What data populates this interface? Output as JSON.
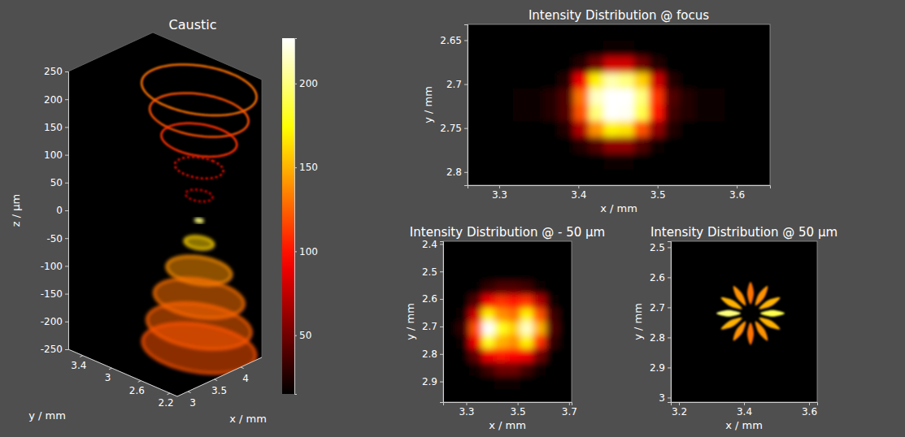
{
  "chart_data": [
    {
      "type": "caustic",
      "title": "Caustic",
      "xlabel": "x / mm",
      "ylabel": "y / mm",
      "zlabel": "z / µm",
      "xlim": [
        2.8,
        4.4
      ],
      "ylim": [
        2.1,
        3.6
      ],
      "zlim": [
        -250,
        250
      ],
      "xticks": [
        3,
        3.5,
        4
      ],
      "yticks": [
        2.2,
        2.6,
        3,
        3.4
      ],
      "zticks": [
        -250,
        -200,
        -150,
        -100,
        -50,
        0,
        50,
        100,
        150,
        200,
        250
      ],
      "center": [
        3.9,
        2.6
      ],
      "slices": [
        {
          "z": 225,
          "radius": 0.64,
          "intensity": 130,
          "type": "ring"
        },
        {
          "z": 180,
          "radius": 0.55,
          "intensity": 120,
          "type": "ring"
        },
        {
          "z": 135,
          "radius": 0.42,
          "intensity": 110,
          "type": "ring"
        },
        {
          "z": 85,
          "radius": 0.27,
          "intensity": 100,
          "type": "ring",
          "line_style": "dotted"
        },
        {
          "z": 35,
          "radius": 0.15,
          "intensity": 90,
          "type": "ring",
          "line_style": "dotted"
        },
        {
          "z": -10,
          "radius": 0.04,
          "intensity": 200,
          "type": "disc"
        },
        {
          "z": -50,
          "radius": 0.16,
          "intensity": 160,
          "type": "disc"
        },
        {
          "z": -100,
          "radius": 0.36,
          "intensity": 140,
          "type": "disc"
        },
        {
          "z": -150,
          "radius": 0.5,
          "intensity": 130,
          "type": "disc"
        },
        {
          "z": -200,
          "radius": 0.58,
          "intensity": 125,
          "type": "disc"
        },
        {
          "z": -240,
          "radius": 0.63,
          "intensity": 120,
          "type": "disc"
        }
      ],
      "colorbar": {
        "range": [
          15,
          227
        ],
        "ticks": [
          50,
          100,
          150,
          200
        ]
      }
    },
    {
      "type": "heatmap",
      "title": "Intensity Distribution @ focus",
      "xlabel": "x / mm",
      "ylabel": "y / mm",
      "xlim": [
        3.26,
        3.642
      ],
      "ylim": [
        2.632,
        2.815
      ],
      "xticks": [
        3.3,
        3.4,
        3.5,
        3.6
      ],
      "yticks": [
        2.65,
        2.7,
        2.75,
        2.8
      ],
      "z": [
        [
          8,
          8,
          8,
          8,
          8,
          8,
          8,
          10,
          10,
          12,
          12,
          10,
          10,
          8,
          8,
          8,
          8,
          8,
          8,
          8
        ],
        [
          8,
          8,
          8,
          10,
          8,
          8,
          10,
          12,
          15,
          20,
          20,
          15,
          12,
          10,
          8,
          8,
          10,
          8,
          8,
          8
        ],
        [
          8,
          8,
          8,
          8,
          12,
          10,
          15,
          25,
          50,
          80,
          80,
          50,
          25,
          15,
          10,
          12,
          8,
          8,
          8,
          8
        ],
        [
          8,
          8,
          10,
          12,
          10,
          15,
          25,
          90,
          170,
          210,
          200,
          160,
          80,
          25,
          15,
          10,
          12,
          10,
          8,
          8
        ],
        [
          10,
          12,
          15,
          18,
          20,
          25,
          40,
          130,
          215,
          240,
          235,
          200,
          110,
          40,
          25,
          20,
          18,
          15,
          12,
          10
        ],
        [
          10,
          12,
          15,
          18,
          20,
          25,
          40,
          120,
          200,
          230,
          225,
          190,
          100,
          35,
          25,
          20,
          18,
          15,
          12,
          10
        ],
        [
          8,
          8,
          10,
          12,
          10,
          15,
          25,
          70,
          140,
          170,
          165,
          120,
          60,
          25,
          15,
          10,
          12,
          10,
          8,
          8
        ],
        [
          8,
          8,
          8,
          8,
          12,
          10,
          15,
          25,
          40,
          60,
          60,
          40,
          20,
          15,
          10,
          12,
          8,
          8,
          8,
          8
        ],
        [
          8,
          8,
          8,
          10,
          8,
          8,
          10,
          12,
          15,
          18,
          18,
          15,
          12,
          10,
          8,
          8,
          10,
          8,
          8,
          8
        ],
        [
          8,
          8,
          8,
          8,
          8,
          8,
          8,
          10,
          10,
          12,
          12,
          10,
          10,
          8,
          8,
          8,
          8,
          8,
          8,
          8
        ]
      ]
    },
    {
      "type": "heatmap",
      "title": "Intensity Distribution @ - 50 µm",
      "xlabel": "x / mm",
      "ylabel": "y / mm",
      "xlim": [
        3.21,
        3.71
      ],
      "ylim": [
        2.39,
        2.975
      ],
      "xticks": [
        3.3,
        3.5,
        3.7
      ],
      "yticks": [
        2.4,
        2.5,
        2.6,
        2.7,
        2.8,
        2.9
      ],
      "z": [
        [
          5,
          5,
          5,
          5,
          5,
          5,
          5,
          5,
          5,
          5
        ],
        [
          5,
          5,
          5,
          5,
          8,
          8,
          5,
          5,
          5,
          5
        ],
        [
          5,
          5,
          8,
          10,
          15,
          15,
          10,
          8,
          5,
          5
        ],
        [
          5,
          5,
          15,
          30,
          40,
          40,
          35,
          20,
          8,
          5
        ],
        [
          5,
          10,
          40,
          90,
          110,
          100,
          110,
          70,
          20,
          5
        ],
        [
          5,
          20,
          80,
          170,
          140,
          130,
          170,
          120,
          35,
          8
        ],
        [
          5,
          30,
          120,
          230,
          180,
          160,
          215,
          150,
          40,
          8
        ],
        [
          5,
          20,
          90,
          180,
          150,
          140,
          170,
          110,
          30,
          8
        ],
        [
          5,
          10,
          45,
          90,
          100,
          95,
          90,
          50,
          15,
          5
        ],
        [
          5,
          8,
          20,
          35,
          50,
          50,
          35,
          20,
          8,
          5
        ],
        [
          5,
          5,
          8,
          15,
          20,
          20,
          15,
          8,
          5,
          5
        ],
        [
          5,
          5,
          5,
          5,
          8,
          8,
          5,
          5,
          5,
          5
        ]
      ]
    },
    {
      "type": "spokes",
      "title": "Intensity Distribution @ 50 µm",
      "xlabel": "x / mm",
      "ylabel": "y / mm",
      "xlim": [
        3.175,
        3.625
      ],
      "ylim": [
        2.48,
        3.015
      ],
      "xticks": [
        3.2,
        3.4,
        3.6
      ],
      "yticks": [
        2.5,
        2.6,
        2.7,
        2.8,
        2.9,
        3
      ],
      "center": [
        3.42,
        2.72
      ],
      "inner_radius": 0.03,
      "outer_radius": 0.105,
      "spokes": [
        {
          "angle": 0,
          "intensity": 190
        },
        {
          "angle": 30,
          "intensity": 150
        },
        {
          "angle": 60,
          "intensity": 140
        },
        {
          "angle": 90,
          "intensity": 130
        },
        {
          "angle": 120,
          "intensity": 140
        },
        {
          "angle": 150,
          "intensity": 150
        },
        {
          "angle": 180,
          "intensity": 200
        },
        {
          "angle": 210,
          "intensity": 150
        },
        {
          "angle": 240,
          "intensity": 140
        },
        {
          "angle": 270,
          "intensity": 130
        },
        {
          "angle": 300,
          "intensity": 140
        },
        {
          "angle": 330,
          "intensity": 150
        }
      ]
    }
  ]
}
